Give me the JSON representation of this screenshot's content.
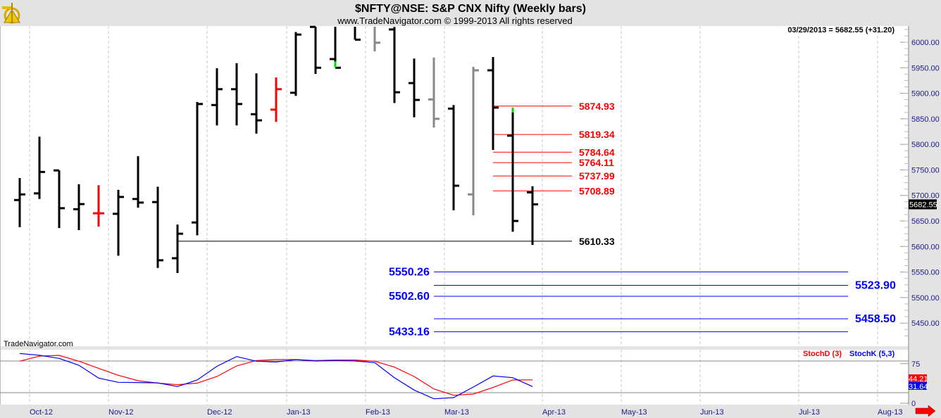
{
  "header": {
    "title": "$NFTY@NSE:  S&P CNX Nifty  (Weekly bars)",
    "subtitle": "www.TradeNavigator.com © 1999-2013 All rights reserved",
    "logo_icon": "sextant-logo-icon",
    "quote": "03/29/2013 = 5682.55 (+31.20)"
  },
  "watermark": "TradeNavigator.com",
  "colors": {
    "up": "#000000",
    "red": "#ff0000",
    "gray": "#888888",
    "green": "#00e000",
    "blue": "#0000ff",
    "axis_text": "#1a1a8c"
  },
  "chart_data": [
    {
      "type": "ohlc",
      "title": "$NFTY@NSE:  S&P CNX Nifty  (Weekly bars)",
      "ylim": [
        5410,
        6030
      ],
      "y_ticks": [
        "6000.00",
        "5950.00",
        "5900.00",
        "5850.00",
        "5800.00",
        "5750.00",
        "5700.00",
        "5650.00",
        "5600.00",
        "5550.00",
        "5500.00",
        "5450.00"
      ],
      "x_ticks": [
        "Oct-12",
        "Nov-12",
        "Dec-12",
        "Jan-13",
        "Feb-13",
        "Mar-13",
        "Apr-13",
        "May-13",
        "Jun-13",
        "Jul-13",
        "Aug-13"
      ],
      "grid": "vertical dashed",
      "bars": [
        {
          "o": 5691,
          "h": 5734,
          "l": 5638,
          "c": 5702,
          "color": "black"
        },
        {
          "o": 5704,
          "h": 5815,
          "l": 5693,
          "c": 5746,
          "color": "black"
        },
        {
          "o": 5749,
          "h": 5749,
          "l": 5636,
          "c": 5675,
          "color": "black"
        },
        {
          "o": 5673,
          "h": 5722,
          "l": 5632,
          "c": 5683,
          "color": "black"
        },
        {
          "o": 5665,
          "h": 5720,
          "l": 5639,
          "c": 5665,
          "color": "red"
        },
        {
          "o": 5664,
          "h": 5711,
          "l": 5582,
          "c": 5697,
          "color": "black"
        },
        {
          "o": 5693,
          "h": 5777,
          "l": 5676,
          "c": 5686,
          "color": "black"
        },
        {
          "o": 5687,
          "h": 5717,
          "l": 5558,
          "c": 5573,
          "color": "black"
        },
        {
          "o": 5577,
          "h": 5643,
          "l": 5548,
          "c": 5625,
          "color": "black"
        },
        {
          "o": 5647,
          "h": 5883,
          "l": 5622,
          "c": 5879,
          "color": "black"
        },
        {
          "o": 5877,
          "h": 5949,
          "l": 5837,
          "c": 5908,
          "color": "black"
        },
        {
          "o": 5908,
          "h": 5959,
          "l": 5837,
          "c": 5879,
          "color": "black"
        },
        {
          "o": 5859,
          "h": 5939,
          "l": 5821,
          "c": 5847,
          "color": "black"
        },
        {
          "o": 5868,
          "h": 5931,
          "l": 5844,
          "c": 5908,
          "color": "red"
        },
        {
          "o": 5901,
          "h": 6020,
          "l": 5895,
          "c": 6015,
          "color": "black"
        },
        {
          "o": 6030,
          "h": 6040,
          "l": 5938,
          "c": 5950,
          "color": "black"
        },
        {
          "o": 5967,
          "h": 6040,
          "l": 5950,
          "c": 5950,
          "color": "black",
          "green_low": true
        },
        {
          "o": 6040,
          "h": 6040,
          "l": 6005,
          "c": 6005,
          "color": "black"
        },
        {
          "o": 6040,
          "h": 6040,
          "l": 5982,
          "c": 5999,
          "color": "gray"
        },
        {
          "o": 6025,
          "h": 6030,
          "l": 5881,
          "c": 5902,
          "color": "black"
        },
        {
          "o": 5920,
          "h": 5968,
          "l": 5853,
          "c": 5887,
          "color": "black"
        },
        {
          "o": 5888,
          "h": 5970,
          "l": 5833,
          "c": 5850,
          "color": "gray"
        },
        {
          "o": 5870,
          "h": 5877,
          "l": 5671,
          "c": 5719,
          "color": "black"
        },
        {
          "o": 5702,
          "h": 5952,
          "l": 5661,
          "c": 5945,
          "color": "gray"
        },
        {
          "o": 5945,
          "h": 5971,
          "l": 5789,
          "c": 5872,
          "color": "black"
        },
        {
          "o": 5817,
          "h": 5872,
          "l": 5629,
          "c": 5650,
          "color": "black",
          "green_high": true
        },
        {
          "o": 5706,
          "h": 5718,
          "l": 5603,
          "c": 5682.55,
          "color": "black"
        }
      ],
      "last_price": "5682.55",
      "levels": [
        {
          "value": 5874.93,
          "label": "5874.93",
          "color": "red",
          "group": "red"
        },
        {
          "value": 5819.34,
          "label": "5819.34",
          "color": "red",
          "group": "red"
        },
        {
          "value": 5784.64,
          "label": "5784.64",
          "color": "red",
          "group": "red"
        },
        {
          "value": 5764.11,
          "label": "5764.11",
          "color": "red",
          "group": "red"
        },
        {
          "value": 5737.99,
          "label": "5737.99",
          "color": "red",
          "group": "red"
        },
        {
          "value": 5708.89,
          "label": "5708.89",
          "color": "red",
          "group": "red"
        },
        {
          "value": 5610.33,
          "label": "5610.33",
          "color": "black",
          "group": "black"
        },
        {
          "value": 5550.26,
          "label": "5550.26",
          "color": "blue",
          "group": "blue-left"
        },
        {
          "value": 5523.9,
          "label": "5523.90",
          "color": "blue",
          "group": "blue-right"
        },
        {
          "value": 5502.6,
          "label": "5502.60",
          "color": "blue",
          "group": "blue-left"
        },
        {
          "value": 5458.5,
          "label": "5458.50",
          "color": "blue",
          "group": "blue-right"
        },
        {
          "value": 5433.16,
          "label": "5433.16",
          "color": "blue",
          "group": "blue-left"
        }
      ]
    },
    {
      "type": "line",
      "ylim": [
        0,
        100
      ],
      "y_ticks": [
        "75",
        "0"
      ],
      "hlines": [
        80,
        20
      ],
      "series": [
        {
          "name": "StochD (3)",
          "color": "red",
          "last": "44.21",
          "values": [
            79.6,
            89.3,
            90.7,
            79.6,
            66.2,
            52.9,
            42.7,
            38.2,
            35.1,
            38.2,
            50.7,
            70.7,
            80.9,
            82.7,
            82.7,
            80.9,
            81.8,
            81.8,
            79.6,
            68.4,
            50.7,
            27.1,
            15.1,
            17.3,
            29.8,
            44.0,
            44.21
          ]
        },
        {
          "name": "StochK (5,3)",
          "color": "blue",
          "last": "31.64",
          "values": [
            94.2,
            91.0,
            85.0,
            72.0,
            47.6,
            39.6,
            39.2,
            38.5,
            31.6,
            44.0,
            70.0,
            88.4,
            79.6,
            78.2,
            82.5,
            80.0,
            81.0,
            80.0,
            77.0,
            48.4,
            25.0,
            8.4,
            10.7,
            30.7,
            51.6,
            48.4,
            31.64
          ]
        }
      ]
    }
  ],
  "scroll_right_icon": "red-arrow-right-icon"
}
